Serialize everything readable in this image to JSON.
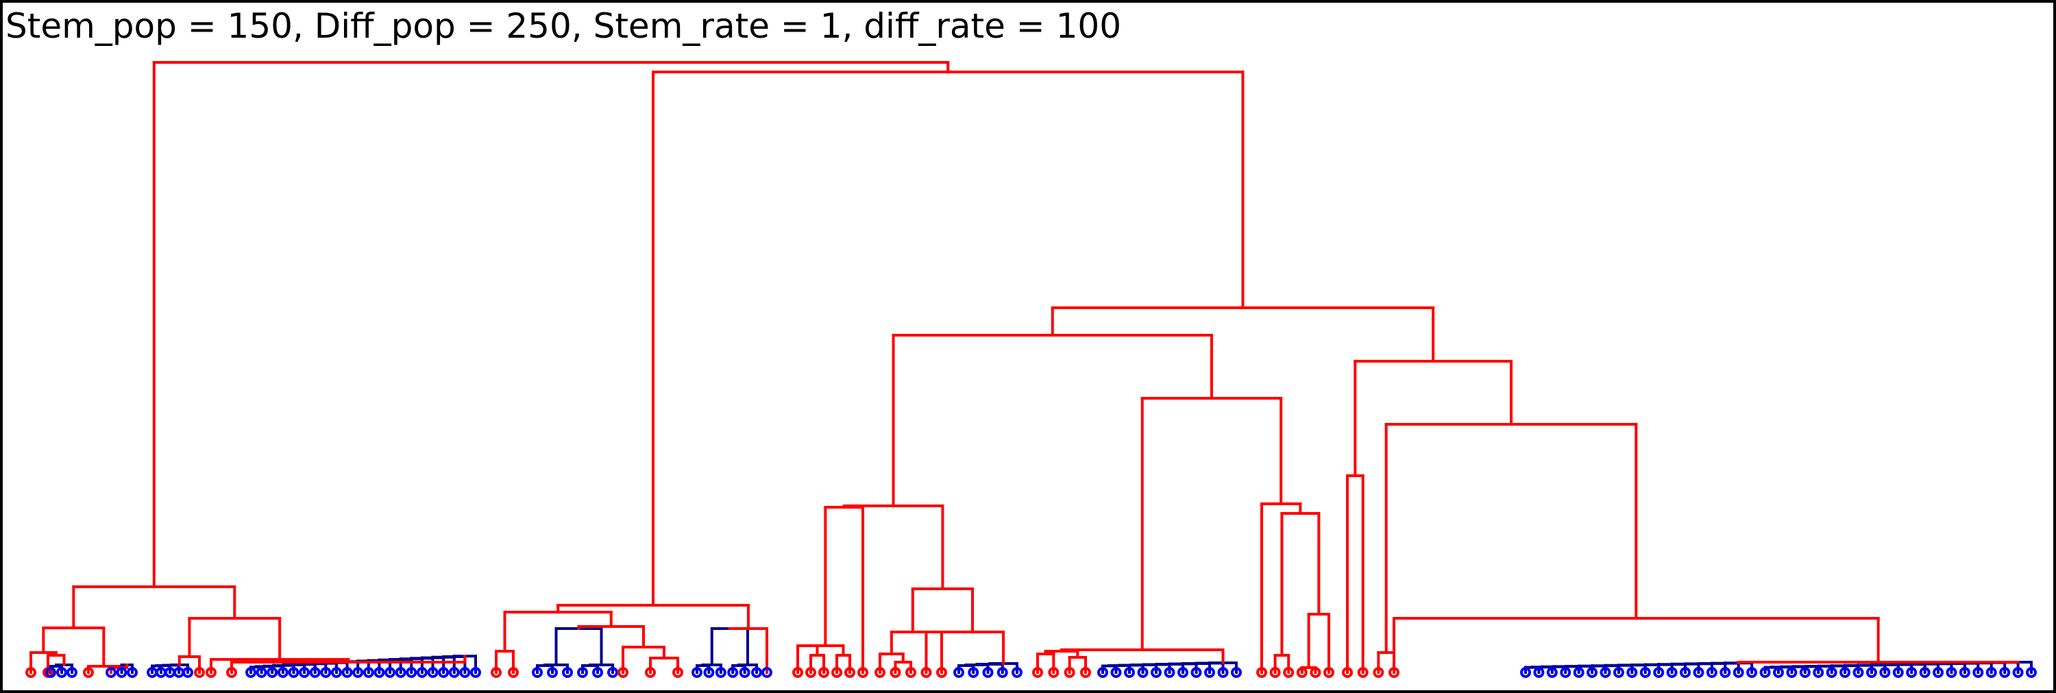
{
  "figure": {
    "title": "Stem_pop = 150, Diff_pop = 250, Stem_rate = 1, diff_rate = 100"
  },
  "colors": {
    "stem": "#ff0000",
    "diff": "#0000ff",
    "diff_branch": "#00008b",
    "frame": "#000000",
    "background": "#ffffff"
  },
  "tree": {
    "type": "dendrogram",
    "leaf_types": [
      "stem",
      "diff"
    ],
    "leaves_left_to_right": "SSDDDSDDDDDDDDSDSDDDDDDDDDDDDDDDSSDDDDDDSDSSDDDDDDSSSSSSSSSSDDDDSSSSSDDDDDDDDDDDSSSSDSSSSSSDDDDDDDDDDDDDDDDDDDDDDDDDDDDDDDDDDDDDDDDDDDDDDDDDDDDDDDDDDDDD"
  }
}
